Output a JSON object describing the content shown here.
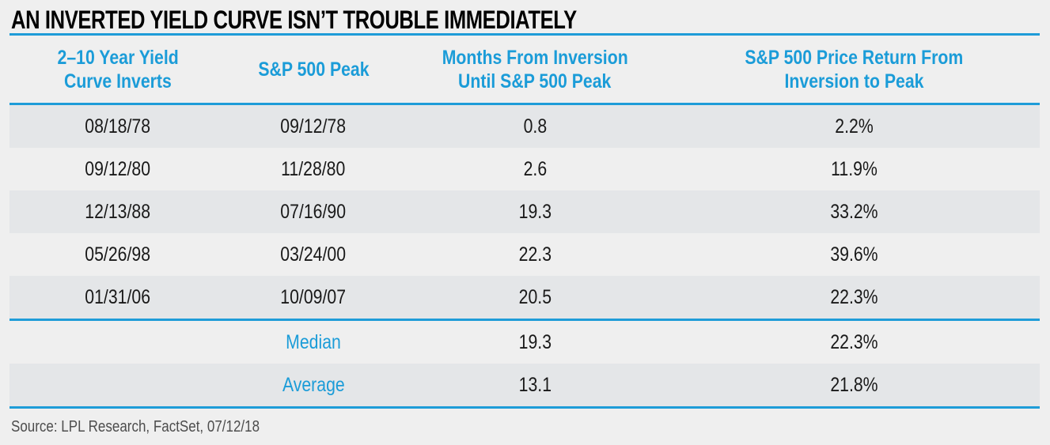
{
  "colors": {
    "accent_blue": "#1B9CD8",
    "rule_blue": "#1E9CD8",
    "stripe_dark": "#E4E6E8",
    "background": "#EFEFEF",
    "title_text": "#000000",
    "data_text": "#191919",
    "source_text": "#4D4D4D"
  },
  "chart_data": {
    "type": "table",
    "title": "AN INVERTED YIELD CURVE ISN’T TROUBLE IMMEDIATELY",
    "columns": [
      {
        "label": "2–10 Year Yield Curve Inverts",
        "line1": "2–10 Year Yield",
        "line2": "Curve Inverts"
      },
      {
        "label": "S&P 500 Peak",
        "line1": "S&P 500 Peak",
        "line2": ""
      },
      {
        "label": "Months From Inversion Until S&P 500 Peak",
        "line1": "Months From Inversion",
        "line2": "Until S&P 500 Peak"
      },
      {
        "label": "S&P 500 Price Return From Inversion to Peak",
        "line1": "S&P 500 Price Return From",
        "line2": "Inversion to Peak"
      }
    ],
    "rows": [
      [
        "08/18/78",
        "09/12/78",
        "0.8",
        "2.2%"
      ],
      [
        "09/12/80",
        "11/28/80",
        "2.6",
        "11.9%"
      ],
      [
        "12/13/88",
        "07/16/90",
        "19.3",
        "33.2%"
      ],
      [
        "05/26/98",
        "03/24/00",
        "22.3",
        "39.6%"
      ],
      [
        "01/31/06",
        "10/09/07",
        "20.5",
        "22.3%"
      ]
    ],
    "summary_rows": [
      {
        "label": "Median",
        "months": "19.3",
        "return": "22.3%"
      },
      {
        "label": "Average",
        "months": "13.1",
        "return": "21.8%"
      }
    ],
    "source": "Source: LPL Research, FactSet, 07/12/18",
    "layout": {
      "grid": "off",
      "stripes": "alternating",
      "header_position": "top"
    }
  }
}
